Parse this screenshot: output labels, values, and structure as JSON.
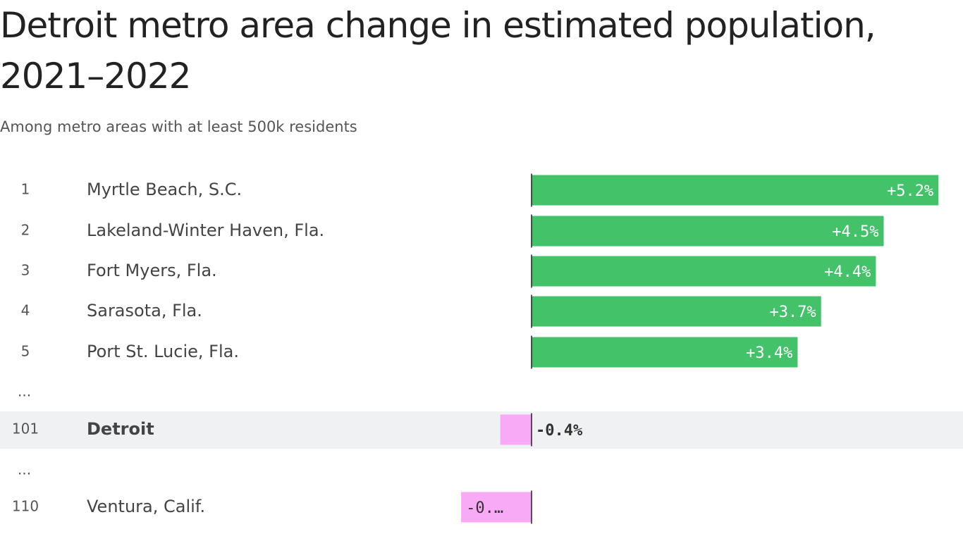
{
  "chart_data": {
    "type": "ranked-bar",
    "title": "Detroit metro area change in estimated population, 2021–2022",
    "subtitle": "Among metro areas with at least 500k residents",
    "ranks": [
      "1",
      "2",
      "3",
      "4",
      "5",
      "...",
      "101",
      "...",
      "110"
    ],
    "categories": [
      "Myrtle Beach, S.C.",
      "Lakeland-Winter Haven, Fla.",
      "Fort Myers, Fla.",
      "Sarasota, Fla.",
      "Port St. Lucie, Fla.",
      null,
      "Detroit",
      null,
      "Ventura, Calif."
    ],
    "values": [
      5.2,
      4.5,
      4.4,
      3.7,
      3.4,
      null,
      -0.4,
      null,
      -0.9
    ],
    "value_labels": [
      "+5.2%",
      "+4.5%",
      "+4.4%",
      "+3.7%",
      "+3.4%",
      null,
      "-0.4%",
      null,
      "-0.…"
    ],
    "highlight": "Detroit",
    "positive_color": "#43c26a",
    "negative_color": "#f9aaf7",
    "xlim": [
      -1.5,
      5.5
    ]
  }
}
